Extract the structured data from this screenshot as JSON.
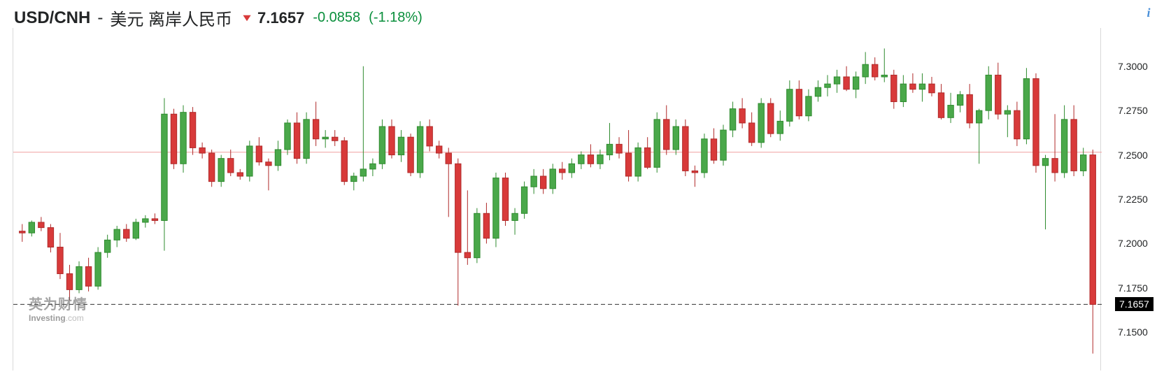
{
  "header": {
    "ticker": "USD/CNH",
    "sep": "-",
    "name": "美元 离岸人民币",
    "direction": "down",
    "price": "7.1657",
    "change_abs": "-0.0858",
    "change_pct": "(-1.18%)"
  },
  "info_icon_label": "i",
  "watermark": {
    "cn": "英为财情",
    "en_main": "Investing",
    "en_domain": ".com"
  },
  "chart": {
    "type": "candlestick",
    "ymin": 7.13,
    "ymax": 7.32,
    "yticks": [
      7.15,
      7.175,
      7.2,
      7.225,
      7.25,
      7.275,
      7.3
    ],
    "ytick_labels": [
      "7.1500",
      "7.1750",
      "7.2000",
      "7.2250",
      "7.2500",
      "7.2750",
      "7.3000"
    ],
    "current_price": 7.1657,
    "current_price_label": "7.1657",
    "prev_close_line": 7.2515,
    "colors": {
      "up_fill": "#4aa84a",
      "up_border": "#2e8b2e",
      "down_fill": "#d83a3a",
      "down_border": "#b02a2a",
      "wick": "#333333",
      "grid": "#d9d9d9",
      "prev_close": "#f0a0a0",
      "current_line": "#333333",
      "background": "#ffffff",
      "axis_text": "#232526"
    },
    "candle_width_ratio": 0.62,
    "candles": [
      {
        "o": 7.207,
        "h": 7.211,
        "l": 7.201,
        "c": 7.206
      },
      {
        "o": 7.206,
        "h": 7.213,
        "l": 7.204,
        "c": 7.212
      },
      {
        "o": 7.212,
        "h": 7.215,
        "l": 7.207,
        "c": 7.209
      },
      {
        "o": 7.209,
        "h": 7.211,
        "l": 7.195,
        "c": 7.198
      },
      {
        "o": 7.198,
        "h": 7.206,
        "l": 7.18,
        "c": 7.183
      },
      {
        "o": 7.183,
        "h": 7.188,
        "l": 7.168,
        "c": 7.174
      },
      {
        "o": 7.174,
        "h": 7.19,
        "l": 7.172,
        "c": 7.187
      },
      {
        "o": 7.187,
        "h": 7.192,
        "l": 7.173,
        "c": 7.176
      },
      {
        "o": 7.176,
        "h": 7.198,
        "l": 7.174,
        "c": 7.195
      },
      {
        "o": 7.195,
        "h": 7.205,
        "l": 7.192,
        "c": 7.202
      },
      {
        "o": 7.202,
        "h": 7.21,
        "l": 7.198,
        "c": 7.208
      },
      {
        "o": 7.208,
        "h": 7.211,
        "l": 7.201,
        "c": 7.203
      },
      {
        "o": 7.203,
        "h": 7.214,
        "l": 7.202,
        "c": 7.212
      },
      {
        "o": 7.212,
        "h": 7.216,
        "l": 7.209,
        "c": 7.214
      },
      {
        "o": 7.214,
        "h": 7.217,
        "l": 7.211,
        "c": 7.213
      },
      {
        "o": 7.213,
        "h": 7.282,
        "l": 7.196,
        "c": 7.273
      },
      {
        "o": 7.273,
        "h": 7.276,
        "l": 7.242,
        "c": 7.245
      },
      {
        "o": 7.245,
        "h": 7.278,
        "l": 7.24,
        "c": 7.274
      },
      {
        "o": 7.274,
        "h": 7.277,
        "l": 7.25,
        "c": 7.254
      },
      {
        "o": 7.254,
        "h": 7.257,
        "l": 7.248,
        "c": 7.251
      },
      {
        "o": 7.251,
        "h": 7.253,
        "l": 7.232,
        "c": 7.235
      },
      {
        "o": 7.235,
        "h": 7.25,
        "l": 7.232,
        "c": 7.248
      },
      {
        "o": 7.248,
        "h": 7.253,
        "l": 7.238,
        "c": 7.24
      },
      {
        "o": 7.24,
        "h": 7.242,
        "l": 7.236,
        "c": 7.238
      },
      {
        "o": 7.238,
        "h": 7.258,
        "l": 7.235,
        "c": 7.255
      },
      {
        "o": 7.255,
        "h": 7.26,
        "l": 7.244,
        "c": 7.246
      },
      {
        "o": 7.246,
        "h": 7.248,
        "l": 7.23,
        "c": 7.244
      },
      {
        "o": 7.244,
        "h": 7.258,
        "l": 7.241,
        "c": 7.253
      },
      {
        "o": 7.253,
        "h": 7.27,
        "l": 7.25,
        "c": 7.268
      },
      {
        "o": 7.268,
        "h": 7.274,
        "l": 7.245,
        "c": 7.248
      },
      {
        "o": 7.248,
        "h": 7.274,
        "l": 7.245,
        "c": 7.27
      },
      {
        "o": 7.27,
        "h": 7.28,
        "l": 7.255,
        "c": 7.259
      },
      {
        "o": 7.259,
        "h": 7.264,
        "l": 7.254,
        "c": 7.26
      },
      {
        "o": 7.26,
        "h": 7.264,
        "l": 7.255,
        "c": 7.258
      },
      {
        "o": 7.258,
        "h": 7.26,
        "l": 7.233,
        "c": 7.235
      },
      {
        "o": 7.235,
        "h": 7.24,
        "l": 7.23,
        "c": 7.238
      },
      {
        "o": 7.238,
        "h": 7.3,
        "l": 7.235,
        "c": 7.242
      },
      {
        "o": 7.242,
        "h": 7.248,
        "l": 7.238,
        "c": 7.245
      },
      {
        "o": 7.245,
        "h": 7.27,
        "l": 7.242,
        "c": 7.266
      },
      {
        "o": 7.266,
        "h": 7.27,
        "l": 7.248,
        "c": 7.25
      },
      {
        "o": 7.25,
        "h": 7.264,
        "l": 7.246,
        "c": 7.26
      },
      {
        "o": 7.26,
        "h": 7.262,
        "l": 7.238,
        "c": 7.24
      },
      {
        "o": 7.24,
        "h": 7.269,
        "l": 7.237,
        "c": 7.266
      },
      {
        "o": 7.266,
        "h": 7.27,
        "l": 7.252,
        "c": 7.255
      },
      {
        "o": 7.255,
        "h": 7.258,
        "l": 7.248,
        "c": 7.251
      },
      {
        "o": 7.251,
        "h": 7.254,
        "l": 7.215,
        "c": 7.245
      },
      {
        "o": 7.245,
        "h": 7.248,
        "l": 7.165,
        "c": 7.195
      },
      {
        "o": 7.195,
        "h": 7.23,
        "l": 7.188,
        "c": 7.192
      },
      {
        "o": 7.192,
        "h": 7.22,
        "l": 7.189,
        "c": 7.217
      },
      {
        "o": 7.217,
        "h": 7.223,
        "l": 7.2,
        "c": 7.203
      },
      {
        "o": 7.203,
        "h": 7.24,
        "l": 7.198,
        "c": 7.237
      },
      {
        "o": 7.237,
        "h": 7.24,
        "l": 7.21,
        "c": 7.213
      },
      {
        "o": 7.213,
        "h": 7.22,
        "l": 7.205,
        "c": 7.217
      },
      {
        "o": 7.217,
        "h": 7.235,
        "l": 7.214,
        "c": 7.232
      },
      {
        "o": 7.232,
        "h": 7.242,
        "l": 7.228,
        "c": 7.238
      },
      {
        "o": 7.238,
        "h": 7.242,
        "l": 7.228,
        "c": 7.231
      },
      {
        "o": 7.231,
        "h": 7.245,
        "l": 7.228,
        "c": 7.242
      },
      {
        "o": 7.242,
        "h": 7.246,
        "l": 7.236,
        "c": 7.24
      },
      {
        "o": 7.24,
        "h": 7.248,
        "l": 7.237,
        "c": 7.245
      },
      {
        "o": 7.245,
        "h": 7.252,
        "l": 7.242,
        "c": 7.25
      },
      {
        "o": 7.25,
        "h": 7.256,
        "l": 7.243,
        "c": 7.245
      },
      {
        "o": 7.245,
        "h": 7.253,
        "l": 7.242,
        "c": 7.25
      },
      {
        "o": 7.25,
        "h": 7.268,
        "l": 7.247,
        "c": 7.256
      },
      {
        "o": 7.256,
        "h": 7.26,
        "l": 7.248,
        "c": 7.251
      },
      {
        "o": 7.251,
        "h": 7.264,
        "l": 7.235,
        "c": 7.238
      },
      {
        "o": 7.238,
        "h": 7.257,
        "l": 7.235,
        "c": 7.254
      },
      {
        "o": 7.254,
        "h": 7.26,
        "l": 7.242,
        "c": 7.243
      },
      {
        "o": 7.243,
        "h": 7.274,
        "l": 7.24,
        "c": 7.27
      },
      {
        "o": 7.27,
        "h": 7.278,
        "l": 7.25,
        "c": 7.253
      },
      {
        "o": 7.253,
        "h": 7.27,
        "l": 7.25,
        "c": 7.266
      },
      {
        "o": 7.266,
        "h": 7.27,
        "l": 7.238,
        "c": 7.241
      },
      {
        "o": 7.241,
        "h": 7.244,
        "l": 7.232,
        "c": 7.24
      },
      {
        "o": 7.24,
        "h": 7.262,
        "l": 7.237,
        "c": 7.259
      },
      {
        "o": 7.259,
        "h": 7.265,
        "l": 7.245,
        "c": 7.247
      },
      {
        "o": 7.247,
        "h": 7.267,
        "l": 7.244,
        "c": 7.264
      },
      {
        "o": 7.264,
        "h": 7.28,
        "l": 7.26,
        "c": 7.276
      },
      {
        "o": 7.276,
        "h": 7.282,
        "l": 7.265,
        "c": 7.268
      },
      {
        "o": 7.268,
        "h": 7.274,
        "l": 7.255,
        "c": 7.257
      },
      {
        "o": 7.257,
        "h": 7.282,
        "l": 7.254,
        "c": 7.279
      },
      {
        "o": 7.279,
        "h": 7.282,
        "l": 7.26,
        "c": 7.262
      },
      {
        "o": 7.262,
        "h": 7.275,
        "l": 7.258,
        "c": 7.269
      },
      {
        "o": 7.269,
        "h": 7.292,
        "l": 7.266,
        "c": 7.287
      },
      {
        "o": 7.287,
        "h": 7.292,
        "l": 7.27,
        "c": 7.272
      },
      {
        "o": 7.272,
        "h": 7.287,
        "l": 7.269,
        "c": 7.283
      },
      {
        "o": 7.283,
        "h": 7.292,
        "l": 7.28,
        "c": 7.288
      },
      {
        "o": 7.288,
        "h": 7.295,
        "l": 7.283,
        "c": 7.29
      },
      {
        "o": 7.29,
        "h": 7.298,
        "l": 7.285,
        "c": 7.294
      },
      {
        "o": 7.294,
        "h": 7.3,
        "l": 7.286,
        "c": 7.287
      },
      {
        "o": 7.287,
        "h": 7.297,
        "l": 7.282,
        "c": 7.294
      },
      {
        "o": 7.294,
        "h": 7.308,
        "l": 7.29,
        "c": 7.301
      },
      {
        "o": 7.301,
        "h": 7.305,
        "l": 7.292,
        "c": 7.294
      },
      {
        "o": 7.294,
        "h": 7.31,
        "l": 7.291,
        "c": 7.295
      },
      {
        "o": 7.295,
        "h": 7.298,
        "l": 7.276,
        "c": 7.28
      },
      {
        "o": 7.28,
        "h": 7.295,
        "l": 7.277,
        "c": 7.29
      },
      {
        "o": 7.29,
        "h": 7.296,
        "l": 7.285,
        "c": 7.287
      },
      {
        "o": 7.287,
        "h": 7.296,
        "l": 7.28,
        "c": 7.29
      },
      {
        "o": 7.29,
        "h": 7.294,
        "l": 7.283,
        "c": 7.285
      },
      {
        "o": 7.285,
        "h": 7.29,
        "l": 7.27,
        "c": 7.271
      },
      {
        "o": 7.271,
        "h": 7.285,
        "l": 7.268,
        "c": 7.278
      },
      {
        "o": 7.278,
        "h": 7.286,
        "l": 7.274,
        "c": 7.284
      },
      {
        "o": 7.284,
        "h": 7.29,
        "l": 7.265,
        "c": 7.268
      },
      {
        "o": 7.268,
        "h": 7.276,
        "l": 7.245,
        "c": 7.275
      },
      {
        "o": 7.275,
        "h": 7.3,
        "l": 7.27,
        "c": 7.295
      },
      {
        "o": 7.295,
        "h": 7.302,
        "l": 7.27,
        "c": 7.273
      },
      {
        "o": 7.273,
        "h": 7.278,
        "l": 7.26,
        "c": 7.275
      },
      {
        "o": 7.275,
        "h": 7.28,
        "l": 7.255,
        "c": 7.259
      },
      {
        "o": 7.259,
        "h": 7.299,
        "l": 7.256,
        "c": 7.293
      },
      {
        "o": 7.293,
        "h": 7.296,
        "l": 7.24,
        "c": 7.244
      },
      {
        "o": 7.244,
        "h": 7.25,
        "l": 7.208,
        "c": 7.248
      },
      {
        "o": 7.248,
        "h": 7.273,
        "l": 7.235,
        "c": 7.24
      },
      {
        "o": 7.24,
        "h": 7.278,
        "l": 7.237,
        "c": 7.27
      },
      {
        "o": 7.27,
        "h": 7.278,
        "l": 7.238,
        "c": 7.241
      },
      {
        "o": 7.241,
        "h": 7.254,
        "l": 7.238,
        "c": 7.25
      },
      {
        "o": 7.25,
        "h": 7.253,
        "l": 7.138,
        "c": 7.1657
      }
    ]
  }
}
